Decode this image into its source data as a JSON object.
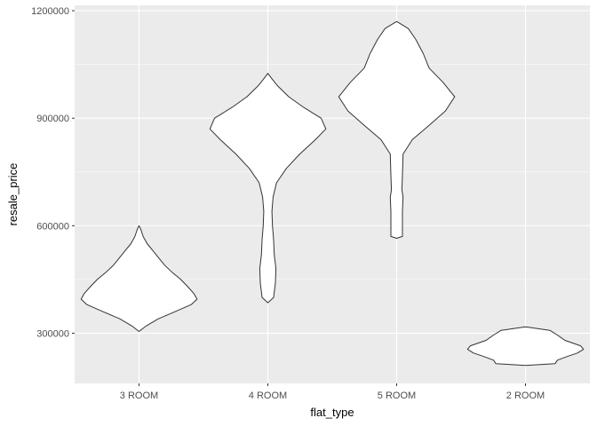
{
  "chart_data": {
    "type": "violin",
    "xlabel": "flat_type",
    "ylabel": "resale_price",
    "categories": [
      "3 ROOM",
      "4 ROOM",
      "5 ROOM",
      "2 ROOM"
    ],
    "ylim": [
      160000,
      1215000
    ],
    "y_ticks": [
      300000,
      600000,
      900000,
      1200000
    ],
    "y_tick_labels": [
      "300000",
      "600000",
      "900000",
      "1200000"
    ],
    "grid": true,
    "legend": "none",
    "colors": {
      "panel_bg": "#ebebeb",
      "grid_major": "#ffffff",
      "violin_fill": "#ffffff",
      "violin_stroke": "#333333"
    },
    "series": [
      {
        "category": "3 ROOM",
        "min": 305000,
        "max": 600000,
        "density": [
          [
            305000,
            0.0
          ],
          [
            320000,
            0.12
          ],
          [
            340000,
            0.33
          ],
          [
            360000,
            0.62
          ],
          [
            380000,
            0.9
          ],
          [
            395000,
            1.0
          ],
          [
            410000,
            0.95
          ],
          [
            430000,
            0.84
          ],
          [
            450000,
            0.72
          ],
          [
            470000,
            0.57
          ],
          [
            490000,
            0.44
          ],
          [
            510000,
            0.34
          ],
          [
            530000,
            0.24
          ],
          [
            550000,
            0.14
          ],
          [
            570000,
            0.07
          ],
          [
            590000,
            0.03
          ],
          [
            600000,
            0.0
          ]
        ]
      },
      {
        "category": "4 ROOM",
        "min": 385000,
        "max": 1025000,
        "density": [
          [
            385000,
            0.0
          ],
          [
            400000,
            0.1
          ],
          [
            440000,
            0.13
          ],
          [
            480000,
            0.14
          ],
          [
            520000,
            0.11
          ],
          [
            560000,
            0.1
          ],
          [
            600000,
            0.08
          ],
          [
            640000,
            0.07
          ],
          [
            680000,
            0.09
          ],
          [
            720000,
            0.15
          ],
          [
            760000,
            0.32
          ],
          [
            800000,
            0.55
          ],
          [
            840000,
            0.82
          ],
          [
            870000,
            1.0
          ],
          [
            900000,
            0.92
          ],
          [
            930000,
            0.62
          ],
          [
            960000,
            0.36
          ],
          [
            990000,
            0.17
          ],
          [
            1010000,
            0.07
          ],
          [
            1025000,
            0.0
          ]
        ]
      },
      {
        "category": "5 ROOM",
        "min": 565000,
        "max": 1170000,
        "density": [
          [
            565000,
            0.0
          ],
          [
            570000,
            0.1
          ],
          [
            600000,
            0.1
          ],
          [
            640000,
            0.1
          ],
          [
            680000,
            0.11
          ],
          [
            700000,
            0.09
          ],
          [
            740000,
            0.1
          ],
          [
            800000,
            0.11
          ],
          [
            840000,
            0.27
          ],
          [
            880000,
            0.56
          ],
          [
            920000,
            0.84
          ],
          [
            960000,
            1.0
          ],
          [
            1000000,
            0.8
          ],
          [
            1040000,
            0.56
          ],
          [
            1080000,
            0.46
          ],
          [
            1120000,
            0.33
          ],
          [
            1150000,
            0.2
          ],
          [
            1170000,
            0.0
          ]
        ]
      },
      {
        "category": "2 ROOM",
        "min": 210000,
        "max": 318000,
        "density": [
          [
            210000,
            0.0
          ],
          [
            215000,
            0.51
          ],
          [
            225000,
            0.55
          ],
          [
            235000,
            0.72
          ],
          [
            245000,
            0.9
          ],
          [
            255000,
            1.0
          ],
          [
            265000,
            0.95
          ],
          [
            280000,
            0.68
          ],
          [
            295000,
            0.55
          ],
          [
            308000,
            0.42
          ],
          [
            318000,
            0.0
          ]
        ]
      }
    ]
  }
}
